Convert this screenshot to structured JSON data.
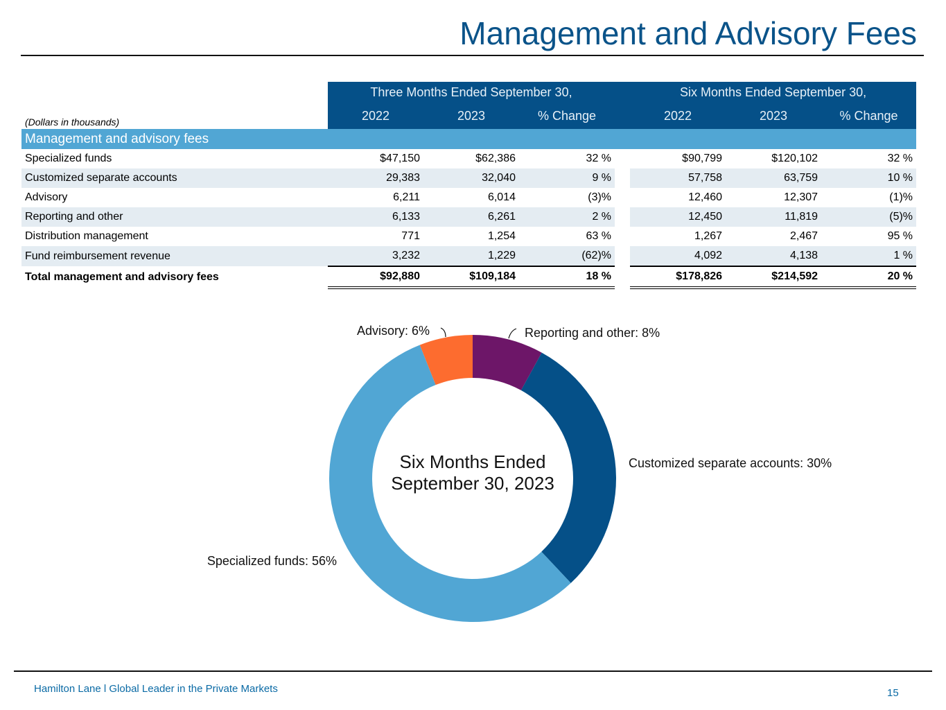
{
  "page": {
    "title": "Management and Advisory Fees",
    "footer": "Hamilton Lane l Global Leader in the Private Markets",
    "page_number": "15"
  },
  "table": {
    "note": "(Dollars in thousands)",
    "groups": [
      "Three Months Ended September 30,",
      "Six Months Ended September 30,"
    ],
    "columns": [
      "2022",
      "2023",
      "% Change",
      "2022",
      "2023",
      "% Change"
    ],
    "section": "Management and advisory fees",
    "rows": [
      {
        "label": "Specialized funds",
        "values": [
          "$47,150",
          "$62,386",
          "32 %",
          "$90,799",
          "$120,102",
          "32 %"
        ]
      },
      {
        "label": "Customized separate accounts",
        "values": [
          "29,383",
          "32,040",
          "9 %",
          "57,758",
          "63,759",
          "10 %"
        ]
      },
      {
        "label": "Advisory",
        "values": [
          "6,211",
          "6,014",
          "(3)%",
          "12,460",
          "12,307",
          "(1)%"
        ]
      },
      {
        "label": "Reporting and other",
        "values": [
          "6,133",
          "6,261",
          "2 %",
          "12,450",
          "11,819",
          "(5)%"
        ]
      },
      {
        "label": "Distribution management",
        "values": [
          "771",
          "1,254",
          "63 %",
          "1,267",
          "2,467",
          "95 %"
        ]
      },
      {
        "label": "Fund reimbursement revenue",
        "values": [
          "3,232",
          "1,229",
          "(62)%",
          "4,092",
          "4,138",
          "1 %"
        ]
      }
    ],
    "total": {
      "label": "Total management and advisory fees",
      "values": [
        "$92,880",
        "$109,184",
        "18 %",
        "$178,826",
        "$214,592",
        "20 %"
      ]
    }
  },
  "chart_data": {
    "type": "pie",
    "donut": true,
    "center_label": [
      "Six Months Ended",
      "September 30, 2023"
    ],
    "slices": [
      {
        "label": "Reporting and other: 8%",
        "value": 8,
        "color": "#6d1668"
      },
      {
        "label": "Customized separate accounts: 30%",
        "value": 30,
        "color": "#055088"
      },
      {
        "label": "Specialized funds: 56%",
        "value": 56,
        "color": "#51a6d4"
      },
      {
        "label": "Advisory: 6%",
        "value": 6,
        "color": "#fd6c2f"
      }
    ]
  }
}
